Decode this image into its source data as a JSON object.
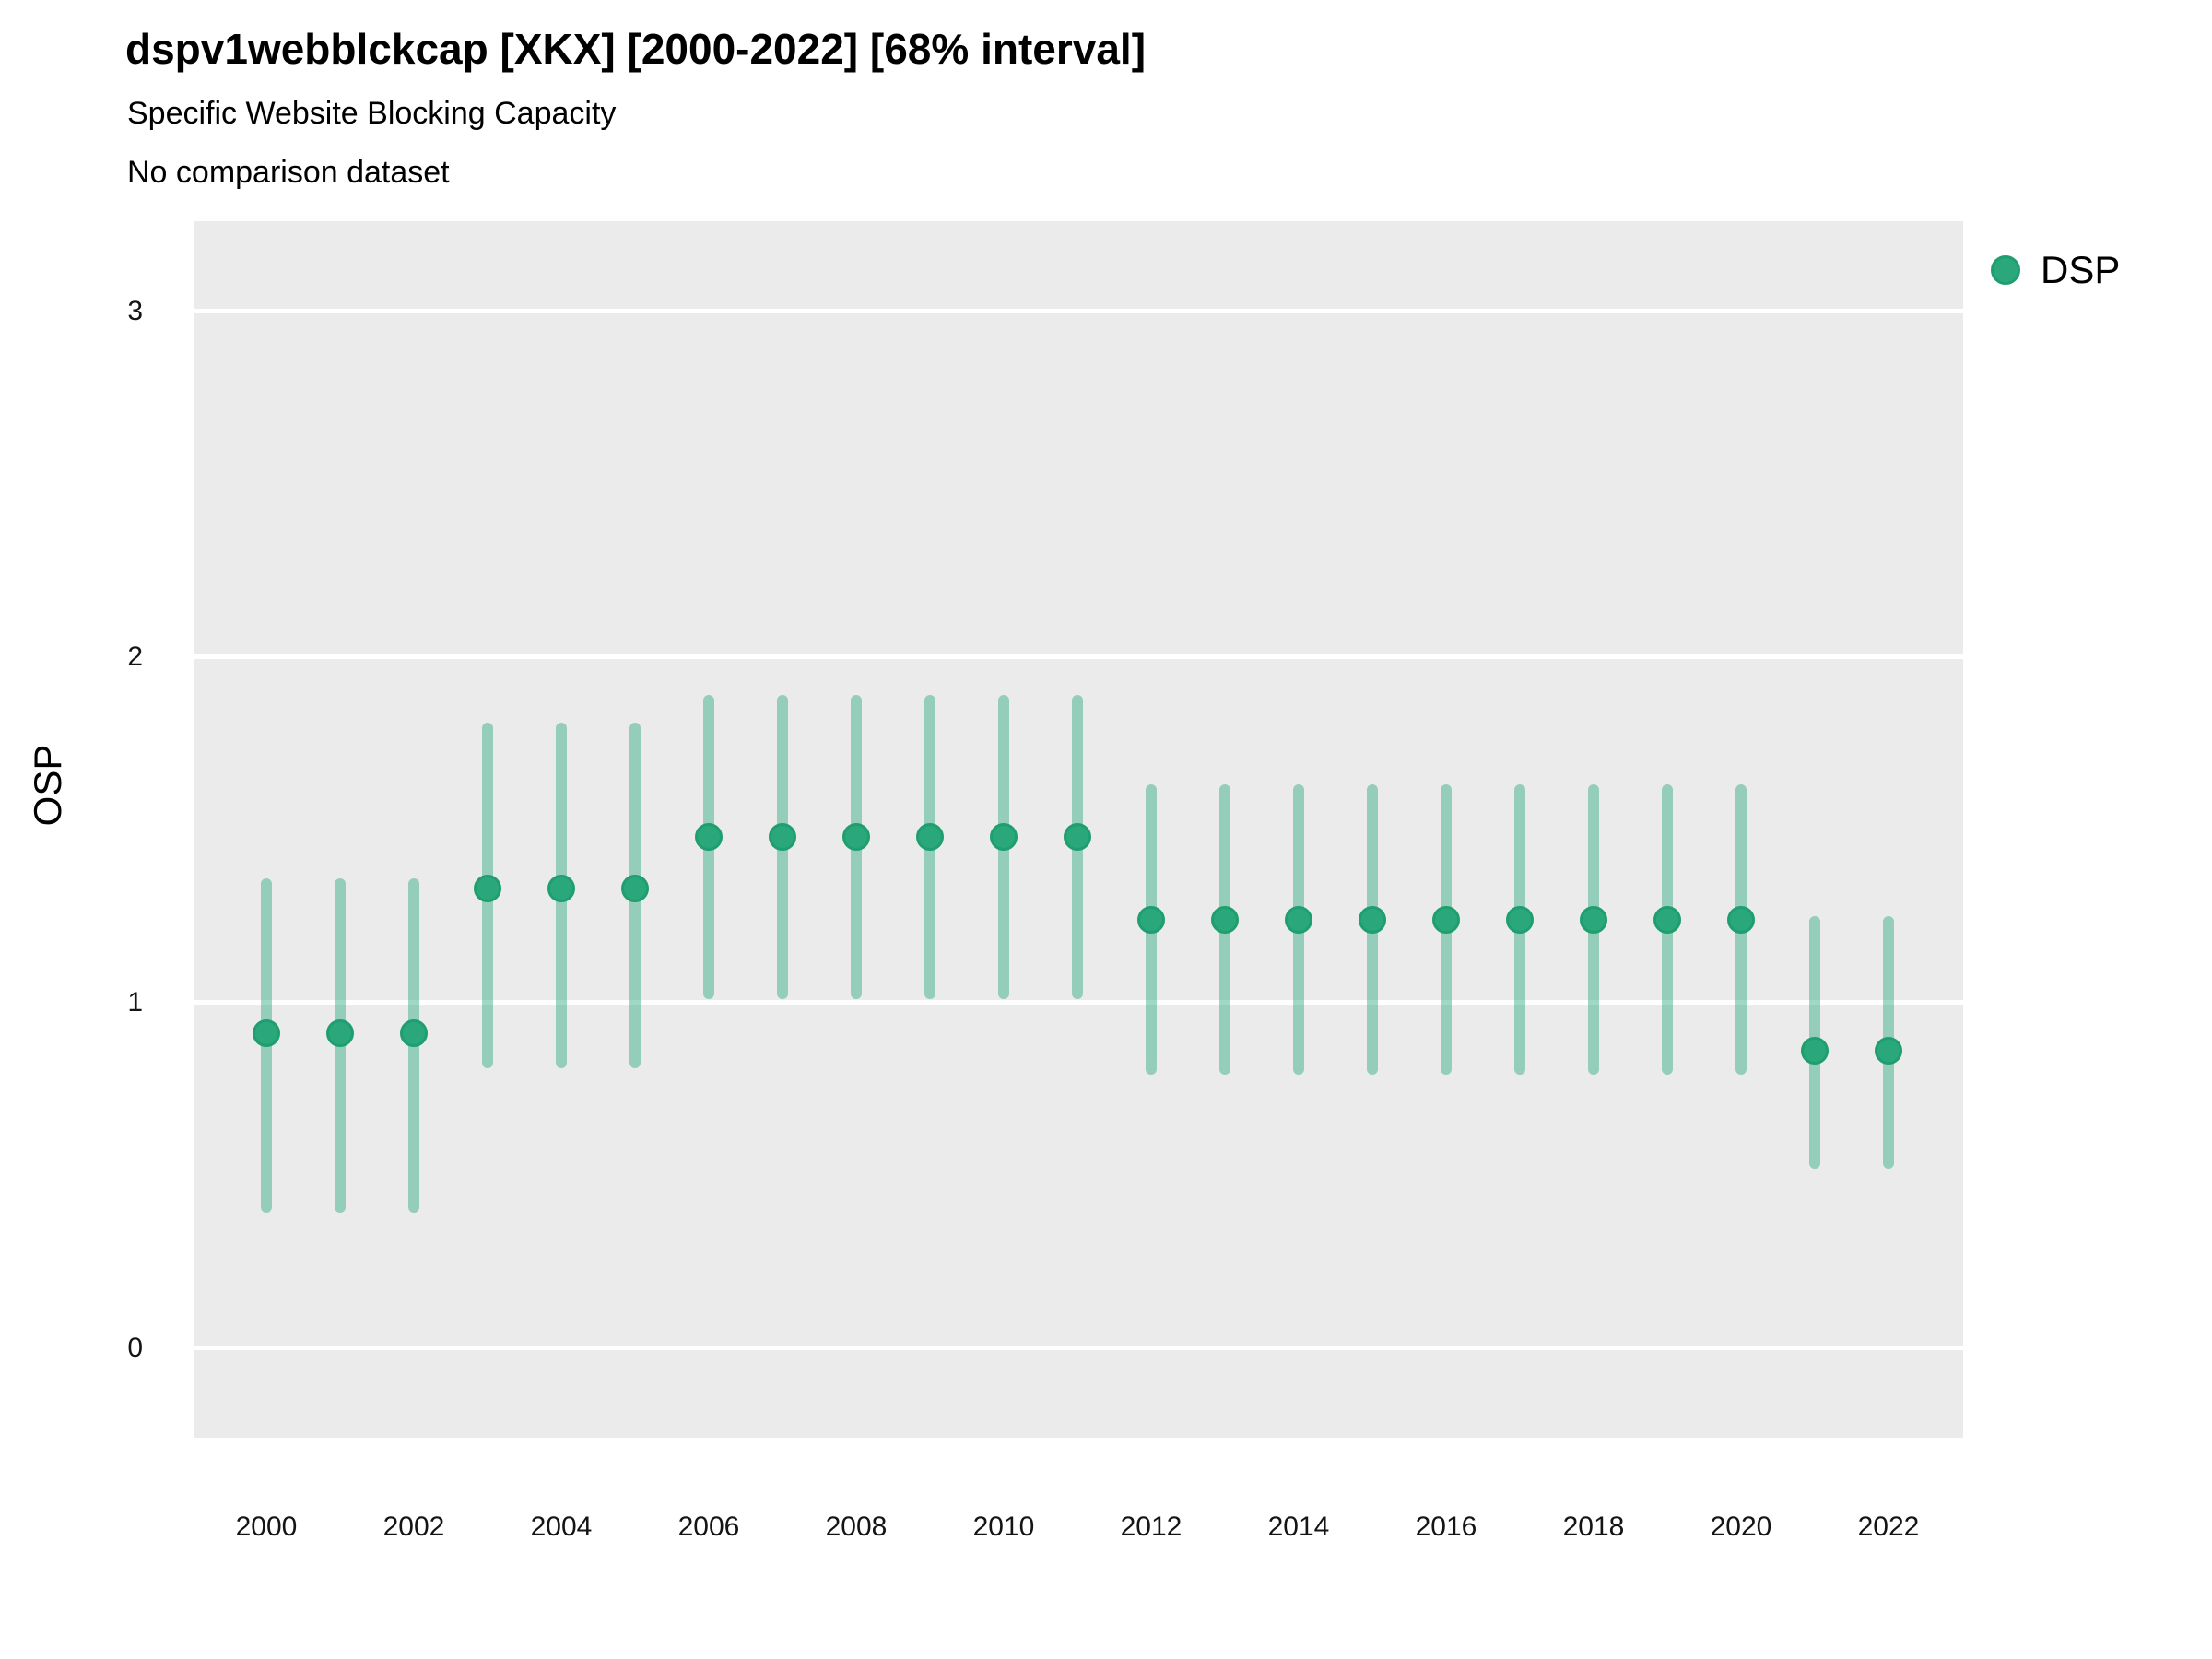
{
  "header": {
    "title": "dspv1webblckcap [XKX] [2000-2022] [68% interval]",
    "subtitle": "Specific Website Blocking Capacity",
    "note": "No comparison dataset"
  },
  "legend": {
    "label": "DSP",
    "marker": "circle-icon"
  },
  "y_axis": {
    "label": "OSP",
    "ticks": [
      0,
      1,
      2,
      3
    ]
  },
  "chart_data": {
    "type": "scatter",
    "mark": "pointrange",
    "title": "dspv1webblckcap [XKX] [2000-2022] [68% interval]",
    "subtitle": "Specific Website Blocking Capacity",
    "note": "No comparison dataset",
    "interval_level": "68%",
    "xlabel": "",
    "ylabel": "OSP",
    "x": [
      2000,
      2001,
      2002,
      2003,
      2004,
      2005,
      2006,
      2007,
      2008,
      2009,
      2010,
      2011,
      2012,
      2013,
      2014,
      2015,
      2016,
      2017,
      2018,
      2019,
      2020,
      2021,
      2022
    ],
    "x_tick_labels": [
      "2000",
      "2002",
      "2004",
      "2006",
      "2008",
      "2010",
      "2012",
      "2014",
      "2016",
      "2018",
      "2020",
      "2022"
    ],
    "y_ticks": [
      0,
      1,
      2,
      3
    ],
    "ylim": [
      -0.26,
      3.26
    ],
    "grid": "major-horizontal-white-on-gray",
    "legend_position": "right-top",
    "series": [
      {
        "name": "DSP",
        "estimate": [
          0.91,
          0.91,
          0.91,
          1.33,
          1.33,
          1.33,
          1.48,
          1.48,
          1.48,
          1.48,
          1.48,
          1.48,
          1.24,
          1.24,
          1.24,
          1.24,
          1.24,
          1.24,
          1.24,
          1.24,
          1.24,
          0.86,
          0.86
        ],
        "lower": [
          0.39,
          0.39,
          0.39,
          0.81,
          0.81,
          0.81,
          1.01,
          1.01,
          1.01,
          1.01,
          1.01,
          1.01,
          0.79,
          0.79,
          0.79,
          0.79,
          0.79,
          0.79,
          0.79,
          0.79,
          0.79,
          0.52,
          0.52
        ],
        "upper": [
          1.36,
          1.36,
          1.36,
          1.81,
          1.81,
          1.81,
          1.89,
          1.89,
          1.89,
          1.89,
          1.89,
          1.89,
          1.63,
          1.63,
          1.63,
          1.63,
          1.63,
          1.63,
          1.63,
          1.63,
          1.63,
          1.25,
          1.25
        ]
      }
    ],
    "colors": {
      "point_fill": "#2aa87c",
      "point_border": "#1f9e70",
      "interval": "rgba(42,168,124,0.45)",
      "panel_background": "#ebebeb",
      "gridline": "#ffffff"
    }
  }
}
